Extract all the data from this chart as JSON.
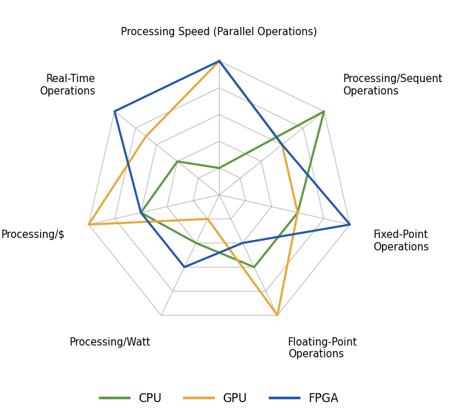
{
  "categories": [
    "Processing Speed (Parallel Operations)",
    "Processing/Sequent\nOperations",
    "Fixed-Point\nOperations",
    "Floating-Point\nOperations",
    "Processing/Watt",
    "Processing/$",
    "Real-Time\nOperations"
  ],
  "series": {
    "CPU": [
      1.0,
      5.0,
      3.0,
      3.0,
      2.0,
      3.0,
      2.0
    ],
    "GPU": [
      5.0,
      3.0,
      3.0,
      5.0,
      1.0,
      5.0,
      3.5
    ],
    "FPGA": [
      5.0,
      3.0,
      5.0,
      2.0,
      3.0,
      3.0,
      5.0
    ]
  },
  "colors": {
    "CPU": "#5b9a3c",
    "GPU": "#e6a83a",
    "FPGA": "#2057b0"
  },
  "max_val": 5,
  "n_rings": 5,
  "background_color": "#ffffff",
  "grid_color": "#bbbbbb",
  "line_width": 2.2,
  "legend_fontsize": 12,
  "label_fontsize": 10.5
}
